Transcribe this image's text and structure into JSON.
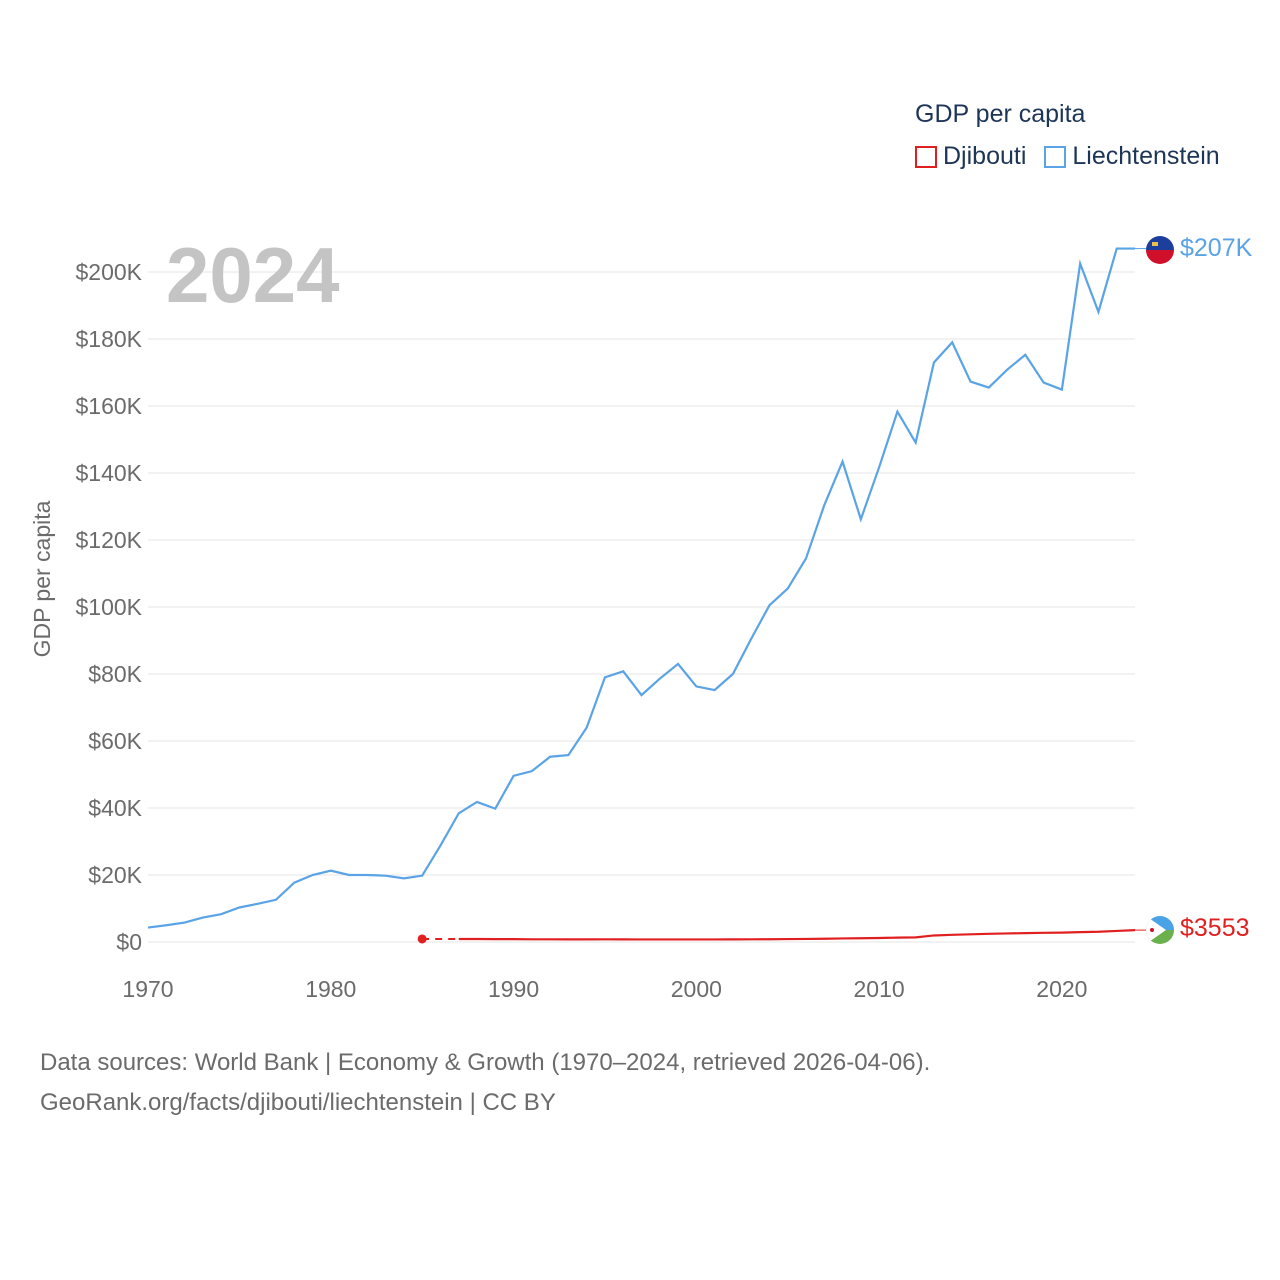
{
  "chart_data": {
    "type": "line",
    "title": "2024",
    "legend_title": "GDP per capita",
    "ylabel": "GDP per capita",
    "xlabel": "",
    "xlim": [
      1970,
      2024
    ],
    "ylim": [
      0,
      210000
    ],
    "x_ticks": [
      1970,
      1980,
      1990,
      2000,
      2010,
      2020
    ],
    "x_tick_labels": [
      "1970",
      "1980",
      "1990",
      "2000",
      "2010",
      "2020"
    ],
    "y_ticks": [
      0,
      20000,
      40000,
      60000,
      80000,
      100000,
      120000,
      140000,
      160000,
      180000,
      200000
    ],
    "y_tick_labels": [
      "$0",
      "$20K",
      "$40K",
      "$60K",
      "$80K",
      "$100K",
      "$120K",
      "$140K",
      "$160K",
      "$180K",
      "$200K"
    ],
    "series": [
      {
        "name": "Liechtenstein",
        "color": "#5aa3e6",
        "end_label": "$207K",
        "x": [
          1970,
          1971,
          1972,
          1973,
          1974,
          1975,
          1976,
          1977,
          1978,
          1979,
          1980,
          1981,
          1982,
          1983,
          1984,
          1985,
          1986,
          1987,
          1988,
          1989,
          1990,
          1991,
          1992,
          1993,
          1994,
          1995,
          1996,
          1997,
          1998,
          1999,
          2000,
          2001,
          2002,
          2003,
          2004,
          2005,
          2006,
          2007,
          2008,
          2009,
          2010,
          2011,
          2012,
          2013,
          2014,
          2015,
          2016,
          2017,
          2018,
          2019,
          2020,
          2021,
          2022,
          2023,
          2024
        ],
        "values": [
          4300,
          5000,
          5800,
          7300,
          8300,
          10300,
          11400,
          12600,
          17700,
          20000,
          21300,
          20000,
          20000,
          19800,
          19000,
          19800,
          28800,
          38400,
          41800,
          39800,
          49600,
          51000,
          55300,
          55800,
          64000,
          79000,
          80800,
          73700,
          78600,
          83000,
          76300,
          75200,
          80000,
          90500,
          100500,
          105500,
          114500,
          130400,
          143400,
          126200,
          141700,
          158300,
          149100,
          173000,
          179000,
          167300,
          165500,
          170800,
          175300,
          167000,
          164900,
          202500,
          188100,
          207000,
          207000
        ]
      },
      {
        "name": "Djibouti",
        "color": "#e02020",
        "end_label": "$3553",
        "x": [
          1985,
          1986,
          1987,
          1988,
          1989,
          1990,
          1991,
          1992,
          1993,
          1994,
          1995,
          1996,
          1997,
          1998,
          1999,
          2000,
          2001,
          2002,
          2003,
          2004,
          2005,
          2006,
          2007,
          2008,
          2009,
          2010,
          2011,
          2012,
          2013,
          2014,
          2015,
          2016,
          2017,
          2018,
          2019,
          2020,
          2021,
          2022,
          2023,
          2024
        ],
        "values": [
          900,
          900,
          900,
          900,
          850,
          850,
          800,
          800,
          780,
          780,
          800,
          780,
          760,
          760,
          760,
          760,
          770,
          780,
          800,
          830,
          870,
          920,
          980,
          1070,
          1120,
          1200,
          1300,
          1380,
          1950,
          2150,
          2300,
          2450,
          2550,
          2650,
          2750,
          2800,
          2950,
          3050,
          3300,
          3553
        ],
        "missing_until": 1987
      }
    ]
  },
  "legend": {
    "title": "GDP per capita",
    "items": [
      "Djibouti",
      "Liechtenstein"
    ]
  },
  "footer": {
    "line1": "Data sources: World Bank | Economy & Growth (1970–2024, retrieved 2026-04-06).",
    "line2": "GeoRank.org/facts/djibouti/liechtenstein | CC BY"
  }
}
